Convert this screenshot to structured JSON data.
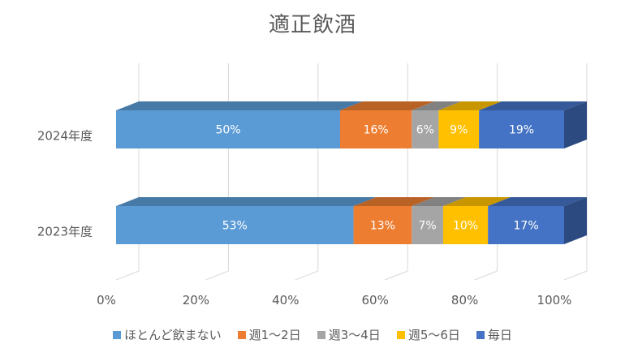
{
  "chart_data": {
    "type": "bar",
    "orientation": "horizontal",
    "stacked": true,
    "percent_stacked": true,
    "three_d": true,
    "title": "適正飲酒",
    "categories": [
      "2024年度",
      "2023年度"
    ],
    "series": [
      {
        "name": "ほとんど飲まない",
        "color": "#5B9BD5",
        "values": [
          50,
          53
        ],
        "labels": [
          "50%",
          "53%"
        ]
      },
      {
        "name": "週1～2日",
        "color": "#ED7D31",
        "values": [
          16,
          13
        ],
        "labels": [
          "16%",
          "13%"
        ]
      },
      {
        "name": "週3～4日",
        "color": "#A5A5A5",
        "values": [
          6,
          7
        ],
        "labels": [
          "6%",
          "7%"
        ]
      },
      {
        "name": "週5～6日",
        "color": "#FFC000",
        "values": [
          9,
          10
        ],
        "labels": [
          "9%",
          "10%"
        ]
      },
      {
        "name": "毎日",
        "color": "#4472C4",
        "values": [
          19,
          17
        ],
        "labels": [
          "19%",
          "17%"
        ]
      }
    ],
    "xaxis": {
      "ticks": [
        "0%",
        "20%",
        "40%",
        "60%",
        "80%",
        "100%"
      ],
      "range": [
        0,
        100
      ]
    },
    "grid": true,
    "legend_position": "bottom"
  }
}
